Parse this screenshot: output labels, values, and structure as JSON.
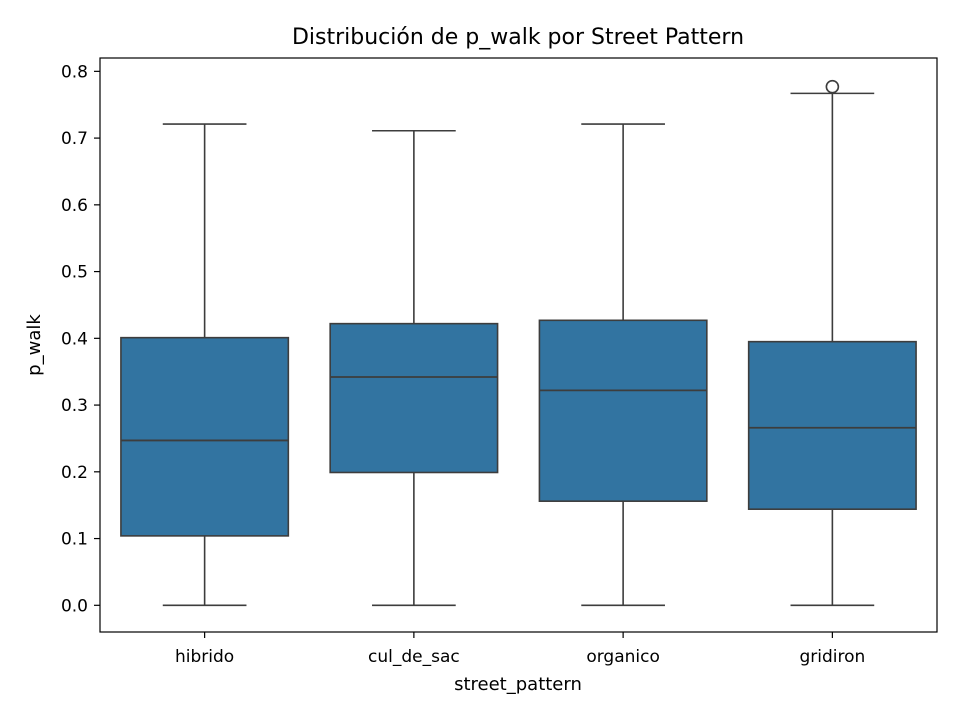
{
  "chart_data": {
    "type": "box",
    "title": "Distribución de p_walk por Street Pattern",
    "xlabel": "street_pattern",
    "ylabel": "p_walk",
    "ylim": [
      -0.04,
      0.82
    ],
    "yticks": [
      "0.0",
      "0.1",
      "0.2",
      "0.3",
      "0.4",
      "0.5",
      "0.6",
      "0.7",
      "0.8"
    ],
    "grid": false,
    "legend": "none",
    "box_color": "#3274a1",
    "line_color": "#3d3d3d",
    "categories": [
      "hibrido",
      "cul_de_sac",
      "organico",
      "gridiron"
    ],
    "boxes": [
      {
        "category": "hibrido",
        "whisker_low": 0.0,
        "q1": 0.104,
        "median": 0.247,
        "q3": 0.401,
        "whisker_high": 0.721,
        "outliers": []
      },
      {
        "category": "cul_de_sac",
        "whisker_low": 0.0,
        "q1": 0.199,
        "median": 0.342,
        "q3": 0.422,
        "whisker_high": 0.711,
        "outliers": []
      },
      {
        "category": "organico",
        "whisker_low": 0.0,
        "q1": 0.156,
        "median": 0.322,
        "q3": 0.427,
        "whisker_high": 0.721,
        "outliers": []
      },
      {
        "category": "gridiron",
        "whisker_low": 0.0,
        "q1": 0.144,
        "median": 0.266,
        "q3": 0.395,
        "whisker_high": 0.767,
        "outliers": [
          0.777
        ]
      }
    ]
  }
}
